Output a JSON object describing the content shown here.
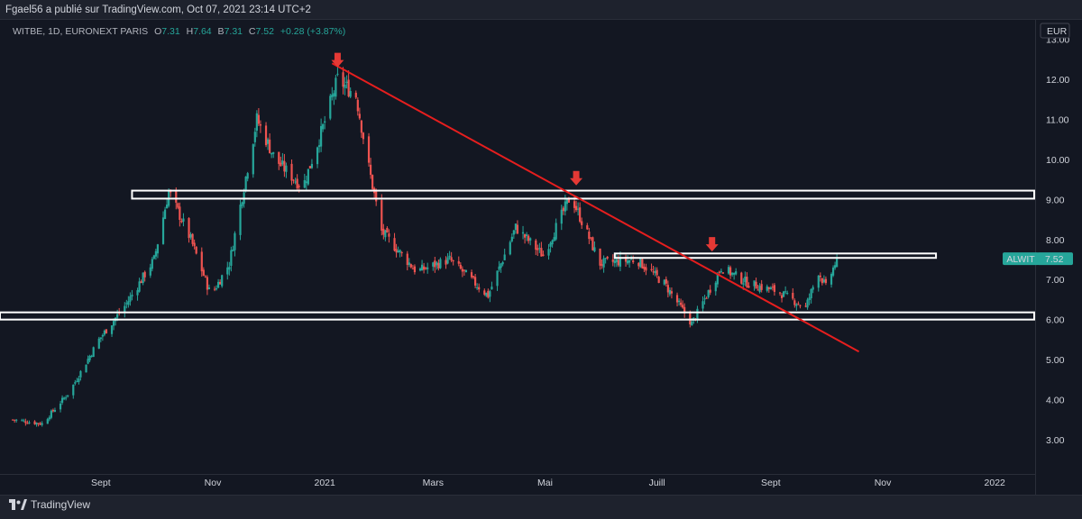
{
  "header": {
    "publisher_line": "Fgael56 a  publié sur TradingView.com, Oct 07, 2021 23:14 UTC+2"
  },
  "legend": {
    "symbol": "WITBE, 1D, EURONEXT PARIS",
    "open_label": "O",
    "open": "7.31",
    "high_label": "H",
    "high": "7.64",
    "low_label": "B",
    "low": "7.31",
    "close_label": "C",
    "close": "7.52",
    "change": "+0.28 (+3.87%)"
  },
  "footer": {
    "brand": "TradingView"
  },
  "colors": {
    "background": "#131722",
    "up": "#26a69a",
    "down": "#ef5350",
    "trendline": "#e61e1e",
    "zone_border": "#ffffff"
  },
  "chart_data": {
    "type": "candlestick",
    "currency": "EUR",
    "ylim": [
      2.5,
      13.5
    ],
    "y_ticks": [
      "3.00",
      "4.00",
      "5.00",
      "6.00",
      "7.00",
      "8.00",
      "9.00",
      "10.00",
      "11.00",
      "12.00",
      "13.00"
    ],
    "x_ticks": [
      "Sept",
      "Nov",
      "2021",
      "Mars",
      "Mai",
      "Juill",
      "Sept",
      "Nov",
      "2022"
    ],
    "price_tag": {
      "symbol": "ALWIT",
      "value": "7.52"
    },
    "price_path": [
      [
        "2020-07-15",
        3.5
      ],
      [
        "2020-07-31",
        3.4
      ],
      [
        "2020-08-15",
        4.2
      ],
      [
        "2020-08-31",
        5.5
      ],
      [
        "2020-09-15",
        6.4
      ],
      [
        "2020-09-30",
        7.5
      ],
      [
        "2020-10-08",
        9.2
      ],
      [
        "2020-10-20",
        8.0
      ],
      [
        "2020-10-31",
        6.6
      ],
      [
        "2020-11-10",
        7.4
      ],
      [
        "2020-11-25",
        11.0
      ],
      [
        "2020-12-05",
        10.0
      ],
      [
        "2020-12-20",
        9.3
      ],
      [
        "2020-12-31",
        10.8
      ],
      [
        "2021-01-08",
        12.0
      ],
      [
        "2021-01-18",
        11.6
      ],
      [
        "2021-01-25",
        9.8
      ],
      [
        "2021-02-01",
        8.2
      ],
      [
        "2021-02-20",
        7.2
      ],
      [
        "2021-03-10",
        7.5
      ],
      [
        "2021-03-31",
        6.6
      ],
      [
        "2021-04-15",
        8.3
      ],
      [
        "2021-04-30",
        7.6
      ],
      [
        "2021-05-15",
        9.1
      ],
      [
        "2021-05-31",
        7.4
      ],
      [
        "2021-06-20",
        7.5
      ],
      [
        "2021-07-05",
        6.9
      ],
      [
        "2021-07-20",
        5.9
      ],
      [
        "2021-08-05",
        7.3
      ],
      [
        "2021-08-20",
        6.9
      ],
      [
        "2021-09-05",
        6.7
      ],
      [
        "2021-09-20",
        6.3
      ],
      [
        "2021-09-27",
        7.2
      ],
      [
        "2021-10-01",
        6.8
      ],
      [
        "2021-10-07",
        7.52
      ]
    ],
    "annotations": {
      "resistance_zone": {
        "from": "2020-09-18",
        "top": 9.22,
        "bottom": 9.02
      },
      "support_zone": {
        "from": "2020-07-01",
        "top": 6.18,
        "bottom": 6.0
      },
      "short_zone": {
        "from": "2021-06-08",
        "to": "2021-11-30",
        "top": 7.65,
        "bottom": 7.54
      },
      "trendline": [
        [
          "2021-01-05",
          12.4
        ],
        [
          "2021-10-19",
          5.2
        ]
      ],
      "arrows": [
        [
          "2021-01-08",
          12.3
        ],
        [
          "2021-05-18",
          9.35
        ],
        [
          "2021-07-31",
          7.7
        ]
      ]
    }
  }
}
